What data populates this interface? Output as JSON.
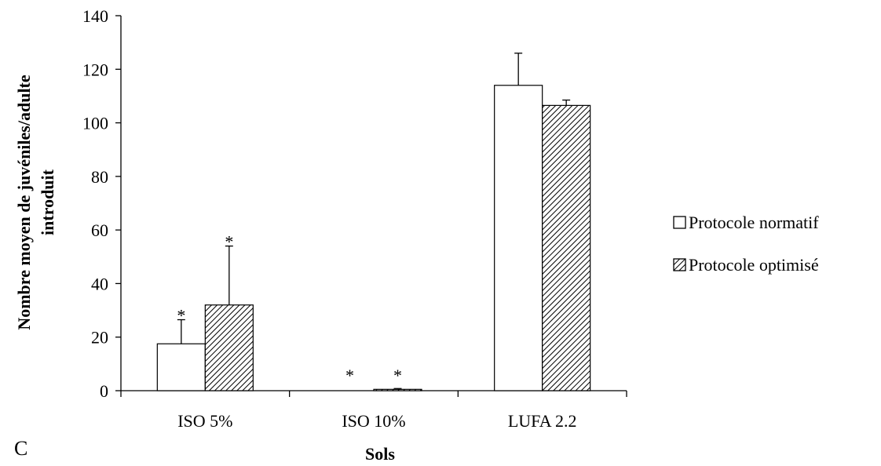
{
  "chart_data": {
    "type": "bar",
    "categories": [
      "ISO 5%",
      "ISO 10%",
      "LUFA 2.2"
    ],
    "series": [
      {
        "name": "Protocole normatif",
        "values": [
          17.5,
          0,
          114
        ],
        "errors": [
          9,
          0,
          12
        ],
        "fill": "white"
      },
      {
        "name": "Protocole optimisé",
        "values": [
          32,
          0.5,
          106.5
        ],
        "errors": [
          22,
          0.3,
          2
        ],
        "fill": "hatched"
      }
    ],
    "significance_marks": [
      [
        "*",
        "*"
      ],
      [
        "*",
        "*"
      ],
      [
        "",
        ""
      ]
    ],
    "xlabel": "Sols",
    "ylabel_lines": [
      "Nombre moyen de juvéniles/adulte",
      "introduit"
    ],
    "ylim": [
      0,
      140
    ],
    "yticks": [
      0,
      20,
      40,
      60,
      80,
      100,
      120,
      140
    ],
    "legend_position": "right",
    "panel_label": "C",
    "grid": false
  }
}
